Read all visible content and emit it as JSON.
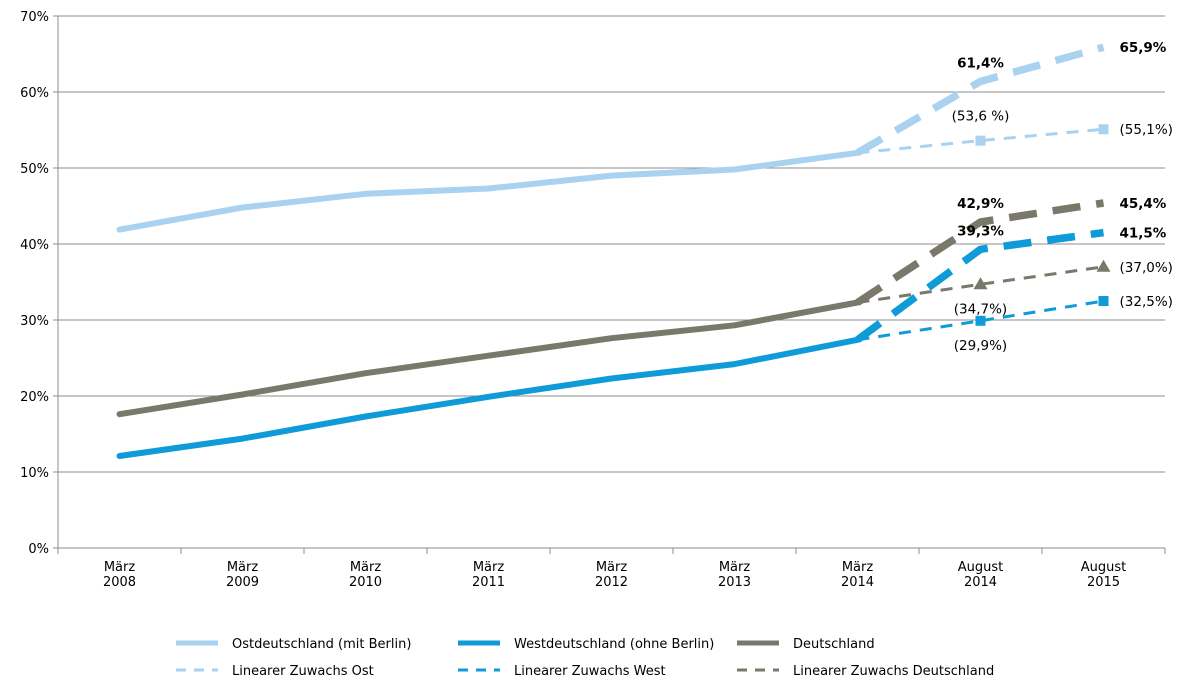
{
  "chart_data": {
    "type": "line",
    "categories": [
      [
        "März",
        "2008"
      ],
      [
        "März",
        "2009"
      ],
      [
        "März",
        "2010"
      ],
      [
        "März",
        "2011"
      ],
      [
        "März",
        "2012"
      ],
      [
        "März",
        "2013"
      ],
      [
        "März",
        "2014"
      ],
      [
        "August",
        "2014"
      ],
      [
        "August",
        "2015"
      ]
    ],
    "ylim": [
      0,
      70
    ],
    "ytick_step": 10,
    "ytick_format": "{v}%",
    "grid": true,
    "legend_position": "bottom",
    "series": [
      {
        "name": "Ostdeutschland (mit Berlin)",
        "style": "solid",
        "color": "#a9d2f1",
        "values": [
          41.9,
          44.8,
          46.6,
          47.3,
          49.0,
          49.8,
          52.0,
          null,
          null
        ]
      },
      {
        "name": "Westdeutschland (ohne Berlin)",
        "style": "solid",
        "color": "#0f9bd7",
        "values": [
          12.1,
          14.4,
          17.3,
          19.9,
          22.3,
          24.2,
          27.4,
          null,
          null
        ]
      },
      {
        "name": "Deutschland",
        "style": "solid",
        "color": "#7a786a",
        "values": [
          17.6,
          20.2,
          23.0,
          25.3,
          27.6,
          29.3,
          32.3,
          null,
          null
        ]
      },
      {
        "name": "",
        "style": "longdash",
        "color": "#a9d2f1",
        "values": [
          null,
          null,
          null,
          null,
          null,
          null,
          52.0,
          61.4,
          65.9
        ]
      },
      {
        "name": "",
        "style": "longdash",
        "color": "#0f9bd7",
        "values": [
          null,
          null,
          null,
          null,
          null,
          null,
          27.4,
          39.3,
          41.5
        ]
      },
      {
        "name": "",
        "style": "longdash",
        "color": "#7a786a",
        "values": [
          null,
          null,
          null,
          null,
          null,
          null,
          32.3,
          42.9,
          45.4
        ]
      },
      {
        "name": "Linearer Zuwachs Ost",
        "style": "dash",
        "marker": "square",
        "color": "#a9d2f1",
        "values": [
          null,
          null,
          null,
          null,
          null,
          null,
          52.0,
          53.6,
          55.1
        ]
      },
      {
        "name": "Linearer Zuwachs West",
        "style": "dash",
        "marker": "square",
        "color": "#0f9bd7",
        "values": [
          null,
          null,
          null,
          null,
          null,
          null,
          27.4,
          29.9,
          32.5
        ]
      },
      {
        "name": "Linearer Zuwachs Deutschland",
        "style": "dash",
        "marker": "triangle",
        "color": "#7a786a",
        "values": [
          null,
          null,
          null,
          null,
          null,
          null,
          32.3,
          34.7,
          37.0
        ]
      }
    ],
    "data_labels": [
      {
        "text": "61,4%",
        "bold": true,
        "category": 7,
        "value": 61.4,
        "anchor": "above"
      },
      {
        "text": "65,9%",
        "bold": true,
        "category": 8,
        "value": 65.9,
        "anchor": "right"
      },
      {
        "text": "(53,6 %)",
        "bold": false,
        "category": 7,
        "value": 53.6,
        "anchor": "above"
      },
      {
        "text": "(55,1%)",
        "bold": false,
        "category": 8,
        "value": 55.1,
        "anchor": "right"
      },
      {
        "text": "42,9%",
        "bold": true,
        "category": 7,
        "value": 42.9,
        "anchor": "above"
      },
      {
        "text": "45,4%",
        "bold": true,
        "category": 8,
        "value": 45.4,
        "anchor": "right"
      },
      {
        "text": "41,5%",
        "bold": true,
        "category": 8,
        "value": 41.5,
        "anchor": "right"
      },
      {
        "text": "39,3%",
        "bold": true,
        "category": 7,
        "value": 39.3,
        "anchor": "above"
      },
      {
        "text": "(37,0%)",
        "bold": false,
        "category": 8,
        "value": 37.0,
        "anchor": "right"
      },
      {
        "text": "(34,7%)",
        "bold": false,
        "category": 7,
        "value": 34.7,
        "anchor": "below"
      },
      {
        "text": "(32,5%)",
        "bold": false,
        "category": 8,
        "value": 32.5,
        "anchor": "right"
      },
      {
        "text": "(29,9%)",
        "bold": false,
        "category": 7,
        "value": 29.9,
        "anchor": "below"
      }
    ],
    "legend_rows": [
      [
        0,
        1,
        2
      ],
      [
        6,
        7,
        8
      ]
    ]
  }
}
